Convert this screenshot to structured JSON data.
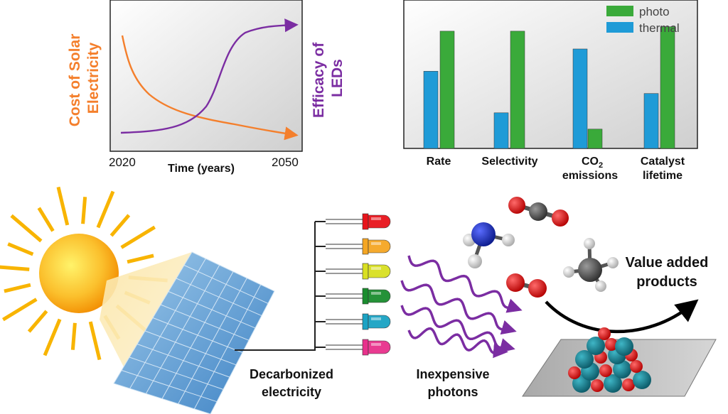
{
  "colors": {
    "cost_curve": "#f47f2c",
    "led_curve": "#7b2da2",
    "photo": "#3aaa3a",
    "thermal": "#1f9bd7",
    "photon": "#7b2da2",
    "sun_core": "#f7a800",
    "panel": "#6aa8d8"
  },
  "line_chart": {
    "y_label_left": [
      "Cost of Solar",
      "Electricity"
    ],
    "y_label_right": [
      "Efficacy of",
      "LEDs"
    ],
    "x_start": "2020",
    "x_end": "2050",
    "x_label": "Time (years)"
  },
  "chart_data": {
    "type": "bar",
    "categories": [
      "Rate",
      "Selectivity",
      "CO2 emissions",
      "Catalyst lifetime"
    ],
    "series": [
      {
        "name": "thermal",
        "values": [
          0.52,
          0.24,
          0.67,
          0.37
        ]
      },
      {
        "name": "photo",
        "values": [
          0.79,
          0.79,
          0.13,
          0.82
        ]
      }
    ],
    "ylim": [
      0,
      1
    ],
    "legend": "top-right"
  },
  "bar_chart": {
    "legend_photo": "photo",
    "legend_thermal": "thermal",
    "cat_rate": "Rate",
    "cat_selectivity": "Selectivity",
    "cat_co2_main": "CO",
    "cat_co2_sub": "2",
    "cat_co2_line2": "emissions",
    "cat_catalyst_line1": "Catalyst",
    "cat_catalyst_line2": "lifetime"
  },
  "labels": {
    "decarb_1": "Decarbonized",
    "decarb_2": "electricity",
    "photons_1": "Inexpensive",
    "photons_2": "photons",
    "products_1": "Value added",
    "products_2": "products"
  },
  "led_colors": [
    "#e8141b",
    "#f5a623",
    "#d9e021",
    "#1a8d2e",
    "#1aa3c4",
    "#e8318c"
  ]
}
